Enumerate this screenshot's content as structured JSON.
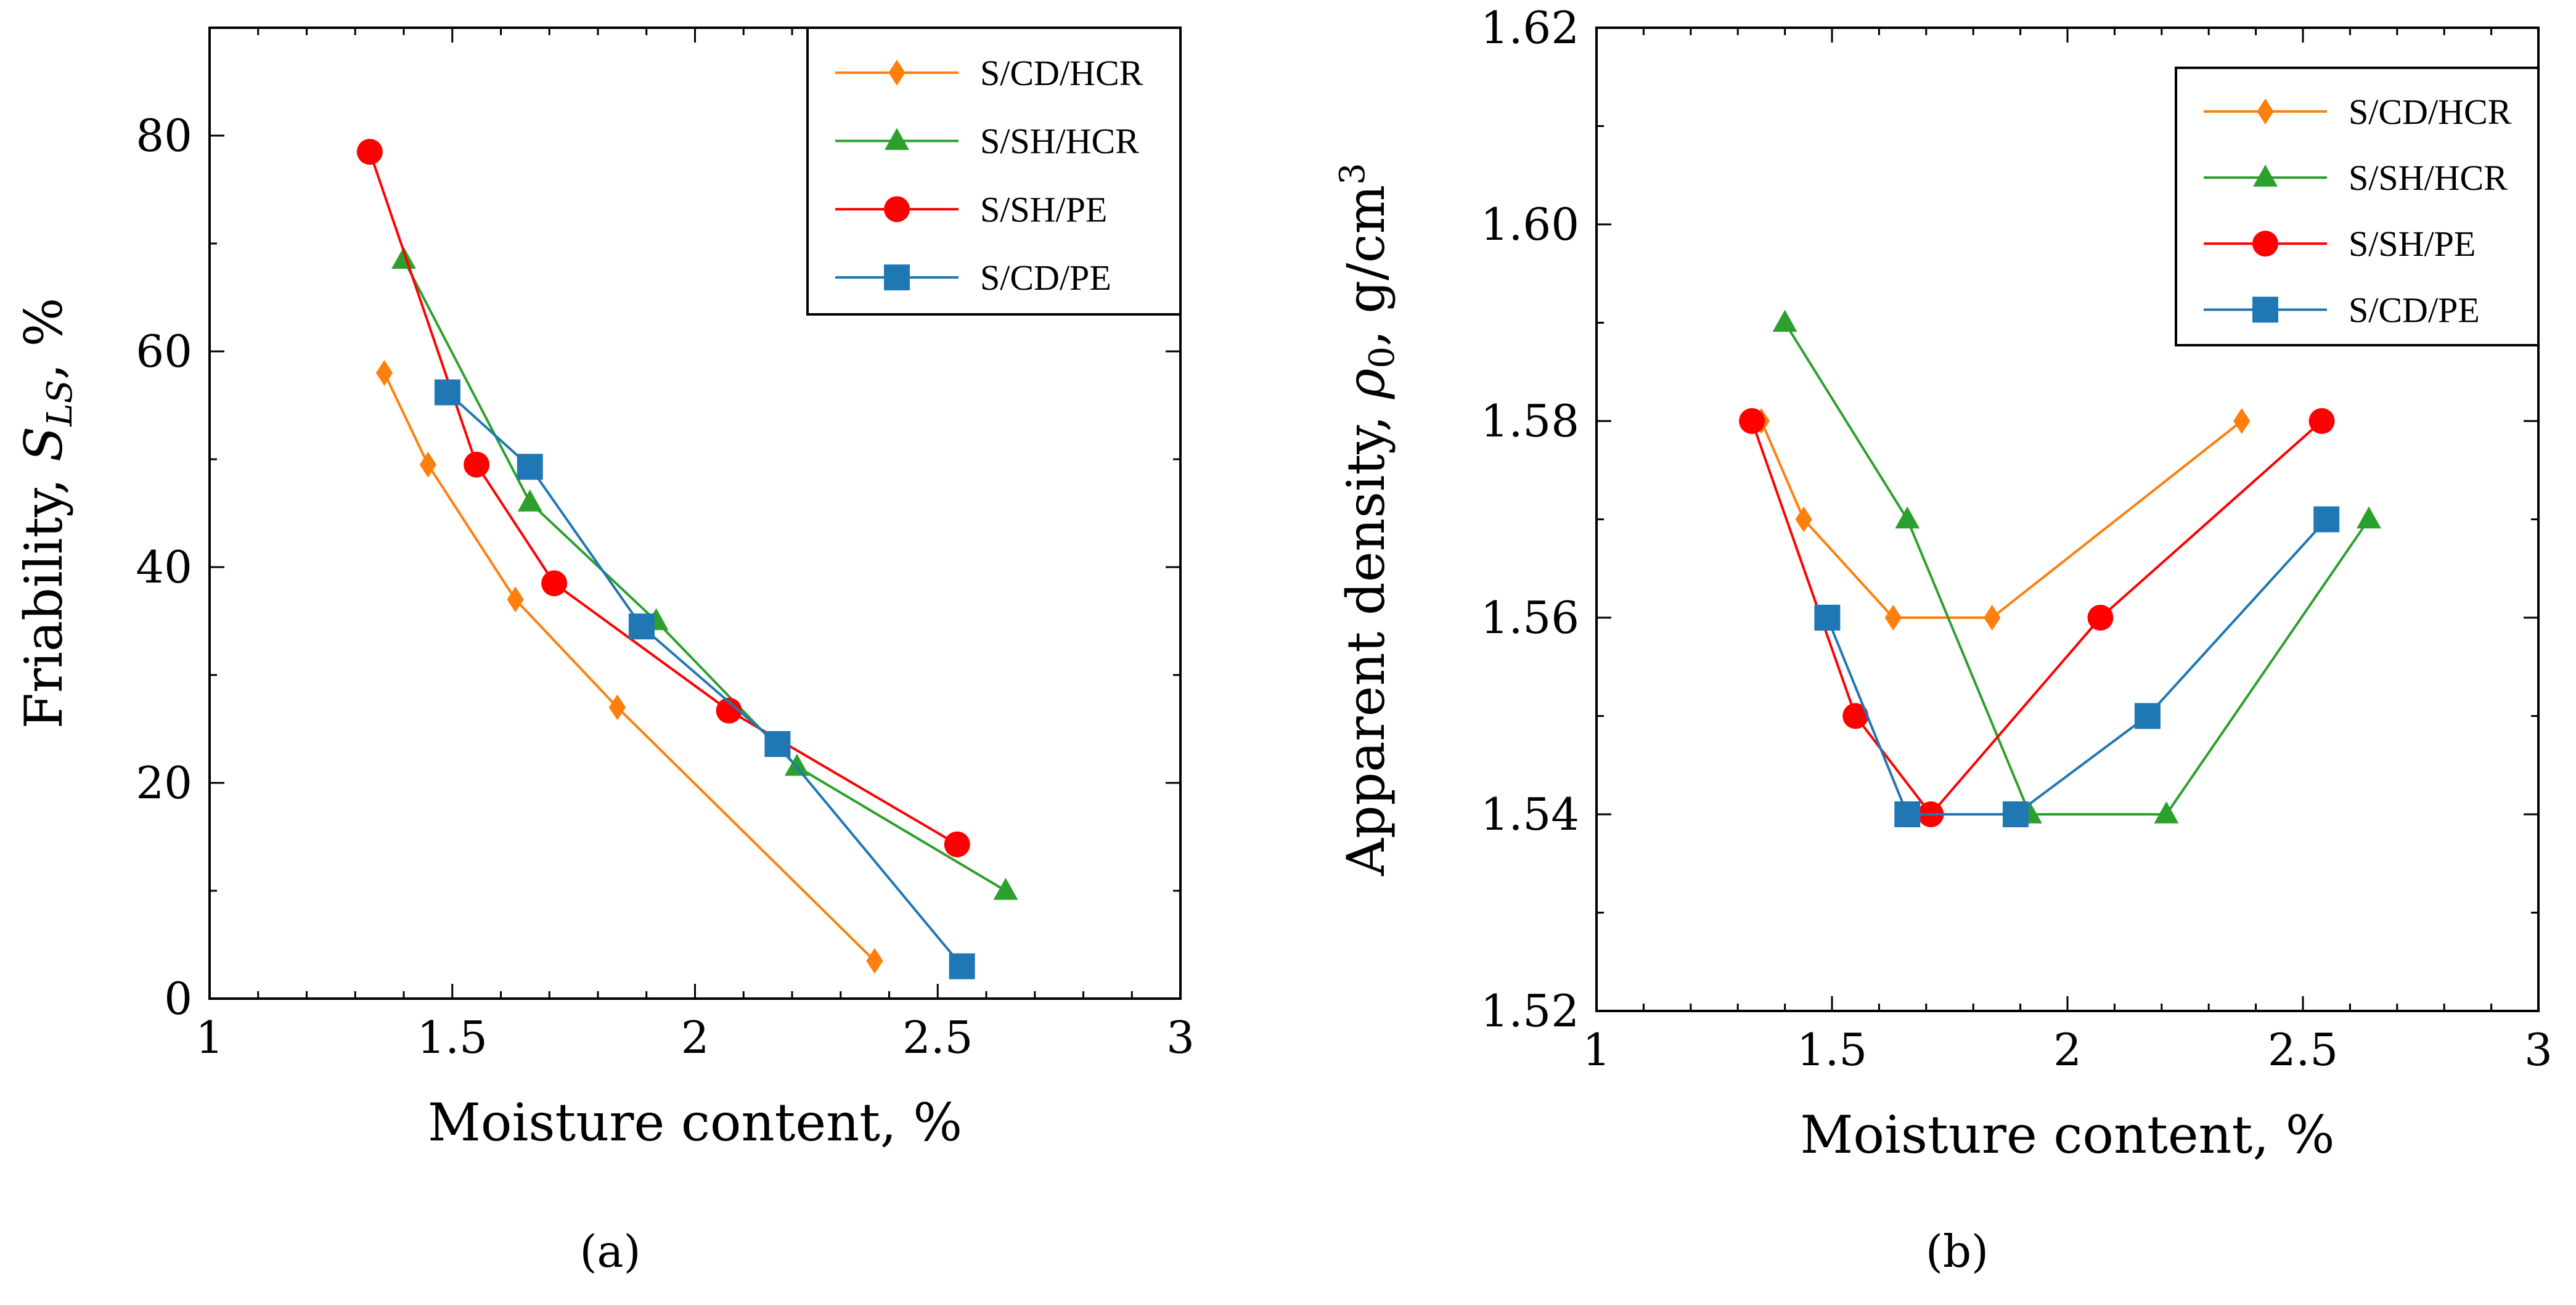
{
  "chart_data": [
    {
      "type": "line",
      "caption": "(a)",
      "xlabel": "Moisture content, %",
      "ylabel_parts": {
        "pre": "Friability, ",
        "sym": "S",
        "sub": "LS",
        "post": ",  %"
      },
      "xlim": [
        1,
        3
      ],
      "ylim": [
        0,
        90
      ],
      "xticks": [
        1,
        1.5,
        2,
        2.5,
        3
      ],
      "xtick_labels": [
        "1",
        "1.5",
        "2",
        "2.5",
        "3"
      ],
      "yticks": [
        0,
        20,
        40,
        60,
        80
      ],
      "ytick_labels": [
        "0",
        "20",
        "40",
        "60",
        "80"
      ],
      "legend_position": "top-right",
      "series": [
        {
          "name": "S/CD/HCR",
          "color": "#ff7f0e",
          "marker": "diamond",
          "x": [
            1.36,
            1.45,
            1.63,
            1.84,
            2.37
          ],
          "y": [
            58,
            49.5,
            37,
            27,
            3.5
          ]
        },
        {
          "name": "S/SH/HCR",
          "color": "#2ca02c",
          "marker": "triangle",
          "x": [
            1.4,
            1.66,
            1.92,
            2.21,
            2.64
          ],
          "y": [
            68.5,
            46,
            35,
            21.5,
            10
          ]
        },
        {
          "name": "S/SH/PE",
          "color": "#ff0000",
          "marker": "circle",
          "x": [
            1.33,
            1.55,
            1.71,
            2.07,
            2.54
          ],
          "y": [
            78.5,
            49.5,
            38.5,
            26.7,
            14.3
          ]
        },
        {
          "name": "S/CD/PE",
          "color": "#1f77b4",
          "marker": "square",
          "x": [
            1.49,
            1.66,
            1.89,
            2.17,
            2.55
          ],
          "y": [
            56.2,
            49.3,
            34.5,
            23.6,
            3
          ]
        }
      ]
    },
    {
      "type": "line",
      "caption": "(b)",
      "xlabel": "Moisture content, %",
      "ylabel_parts": {
        "pre": "Apparent density, ",
        "sym": "ρ",
        "sub": "0",
        "post": ",  g/cm",
        "sup": "3"
      },
      "xlim": [
        1,
        3
      ],
      "ylim": [
        1.52,
        1.62
      ],
      "xticks": [
        1,
        1.5,
        2,
        2.5,
        3
      ],
      "xtick_labels": [
        "1",
        "1.5",
        "2",
        "2.5",
        "3"
      ],
      "yticks": [
        1.52,
        1.54,
        1.56,
        1.58,
        1.6,
        1.62
      ],
      "ytick_labels": [
        "1.52",
        "1.54",
        "1.56",
        "1.58",
        "1.60",
        "1.62"
      ],
      "legend_position": "top-right",
      "series": [
        {
          "name": "S/CD/HCR",
          "color": "#ff7f0e",
          "marker": "diamond",
          "x": [
            1.35,
            1.44,
            1.63,
            1.84,
            2.37
          ],
          "y": [
            1.58,
            1.57,
            1.56,
            1.56,
            1.58
          ]
        },
        {
          "name": "S/SH/HCR",
          "color": "#2ca02c",
          "marker": "triangle",
          "x": [
            1.4,
            1.66,
            1.92,
            2.21,
            2.64
          ],
          "y": [
            1.59,
            1.57,
            1.54,
            1.54,
            1.57
          ]
        },
        {
          "name": "S/SH/PE",
          "color": "#ff0000",
          "marker": "circle",
          "x": [
            1.33,
            1.55,
            1.71,
            2.07,
            2.54
          ],
          "y": [
            1.58,
            1.55,
            1.54,
            1.56,
            1.58
          ]
        },
        {
          "name": "S/CD/PE",
          "color": "#1f77b4",
          "marker": "square",
          "x": [
            1.49,
            1.66,
            1.89,
            2.17,
            2.55
          ],
          "y": [
            1.56,
            1.54,
            1.54,
            1.55,
            1.57
          ]
        }
      ]
    }
  ]
}
